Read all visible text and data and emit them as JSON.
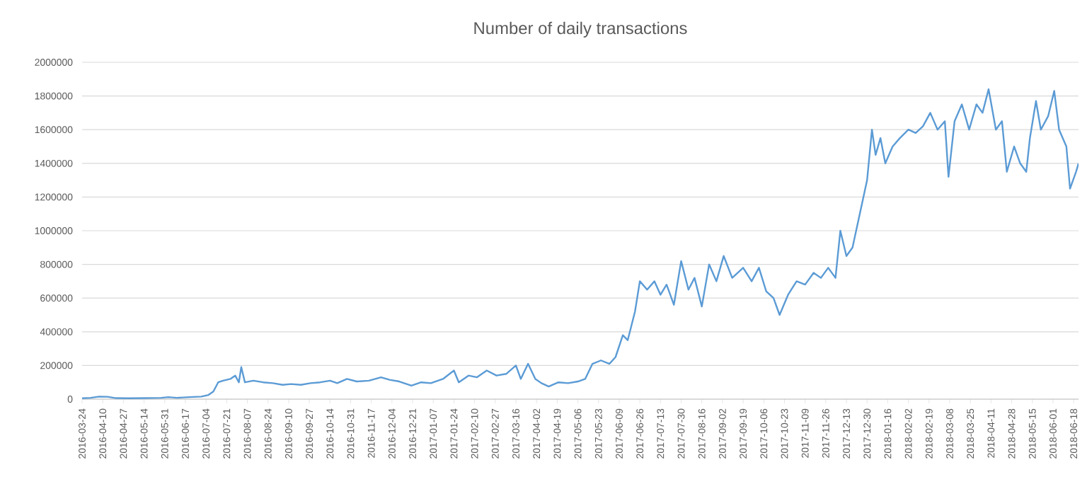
{
  "chart_data": {
    "type": "line",
    "title": "Number of daily transactions",
    "x": [
      "2016-03-24",
      "2016-03-31",
      "2016-04-07",
      "2016-04-14",
      "2016-04-21",
      "2016-05-01",
      "2016-05-15",
      "2016-05-28",
      "2016-06-03",
      "2016-06-10",
      "2016-06-20",
      "2016-06-30",
      "2016-07-06",
      "2016-07-10",
      "2016-07-14",
      "2016-07-18",
      "2016-07-24",
      "2016-07-28",
      "2016-07-31",
      "2016-08-02",
      "2016-08-05",
      "2016-08-12",
      "2016-08-20",
      "2016-08-28",
      "2016-09-05",
      "2016-09-12",
      "2016-09-20",
      "2016-09-28",
      "2016-10-06",
      "2016-10-14",
      "2016-10-20",
      "2016-10-28",
      "2016-11-05",
      "2016-11-15",
      "2016-11-25",
      "2016-12-02",
      "2016-12-10",
      "2016-12-20",
      "2016-12-28",
      "2017-01-05",
      "2017-01-15",
      "2017-01-24",
      "2017-01-28",
      "2017-02-05",
      "2017-02-12",
      "2017-02-20",
      "2017-02-28",
      "2017-03-08",
      "2017-03-16",
      "2017-03-20",
      "2017-03-26",
      "2017-04-01",
      "2017-04-06",
      "2017-04-12",
      "2017-04-20",
      "2017-04-28",
      "2017-05-06",
      "2017-05-12",
      "2017-05-18",
      "2017-05-25",
      "2017-06-01",
      "2017-06-06",
      "2017-06-12",
      "2017-06-16",
      "2017-06-22",
      "2017-06-26",
      "2017-07-02",
      "2017-07-08",
      "2017-07-13",
      "2017-07-18",
      "2017-07-24",
      "2017-07-30",
      "2017-08-05",
      "2017-08-10",
      "2017-08-16",
      "2017-08-22",
      "2017-08-28",
      "2017-09-03",
      "2017-09-10",
      "2017-09-19",
      "2017-09-26",
      "2017-10-02",
      "2017-10-08",
      "2017-10-14",
      "2017-10-19",
      "2017-10-26",
      "2017-11-02",
      "2017-11-09",
      "2017-11-16",
      "2017-11-22",
      "2017-11-28",
      "2017-12-04",
      "2017-12-08",
      "2017-12-13",
      "2017-12-18",
      "2017-12-24",
      "2017-12-30",
      "2018-01-03",
      "2018-01-06",
      "2018-01-10",
      "2018-01-14",
      "2018-01-20",
      "2018-01-26",
      "2018-02-02",
      "2018-02-08",
      "2018-02-14",
      "2018-02-20",
      "2018-02-26",
      "2018-03-04",
      "2018-03-07",
      "2018-03-12",
      "2018-03-18",
      "2018-03-24",
      "2018-03-30",
      "2018-04-04",
      "2018-04-09",
      "2018-04-15",
      "2018-04-20",
      "2018-04-24",
      "2018-04-30",
      "2018-05-05",
      "2018-05-10",
      "2018-05-13",
      "2018-05-18",
      "2018-05-22",
      "2018-05-28",
      "2018-06-02",
      "2018-06-06",
      "2018-06-12",
      "2018-06-15",
      "2018-06-20",
      "2018-06-22"
    ],
    "series": [
      {
        "color": "#5b9bd5",
        "values": [
          5000,
          8000,
          15000,
          14000,
          6000,
          5000,
          6000,
          8000,
          12000,
          8000,
          12000,
          15000,
          25000,
          45000,
          100000,
          110000,
          120000,
          140000,
          100000,
          190000,
          100000,
          110000,
          100000,
          95000,
          85000,
          90000,
          85000,
          95000,
          100000,
          110000,
          95000,
          120000,
          105000,
          110000,
          130000,
          115000,
          105000,
          80000,
          100000,
          95000,
          120000,
          170000,
          100000,
          140000,
          130000,
          170000,
          140000,
          150000,
          200000,
          120000,
          210000,
          120000,
          95000,
          75000,
          100000,
          95000,
          105000,
          120000,
          210000,
          230000,
          210000,
          250000,
          380000,
          350000,
          520000,
          700000,
          650000,
          700000,
          620000,
          680000,
          560000,
          820000,
          650000,
          720000,
          550000,
          800000,
          700000,
          850000,
          720000,
          780000,
          700000,
          780000,
          640000,
          600000,
          500000,
          620000,
          700000,
          680000,
          750000,
          720000,
          780000,
          720000,
          1000000,
          850000,
          900000,
          1100000,
          1300000,
          1600000,
          1450000,
          1550000,
          1400000,
          1500000,
          1550000,
          1600000,
          1580000,
          1620000,
          1700000,
          1600000,
          1650000,
          1320000,
          1650000,
          1750000,
          1600000,
          1750000,
          1700000,
          1840000,
          1600000,
          1650000,
          1350000,
          1500000,
          1400000,
          1350000,
          1550000,
          1770000,
          1600000,
          1680000,
          1830000,
          1600000,
          1500000,
          1250000,
          1350000,
          1400000
        ]
      }
    ],
    "xlim": [
      "2016-03-24",
      "2018-06-22"
    ],
    "xticks": [
      "2016-03-24",
      "2016-04-10",
      "2016-04-27",
      "2016-05-14",
      "2016-05-31",
      "2016-06-17",
      "2016-07-04",
      "2016-07-21",
      "2016-08-07",
      "2016-08-24",
      "2016-09-10",
      "2016-09-27",
      "2016-10-14",
      "2016-10-31",
      "2016-11-17",
      "2016-12-04",
      "2016-12-21",
      "2017-01-07",
      "2017-01-24",
      "2017-02-10",
      "2017-02-27",
      "2017-03-16",
      "2017-04-02",
      "2017-04-19",
      "2017-05-06",
      "2017-05-23",
      "2017-06-09",
      "2017-06-26",
      "2017-07-13",
      "2017-07-30",
      "2017-08-16",
      "2017-09-02",
      "2017-09-19",
      "2017-10-06",
      "2017-10-23",
      "2017-11-09",
      "2017-11-26",
      "2017-12-13",
      "2017-12-30",
      "2018-01-16",
      "2018-02-02",
      "2018-02-19",
      "2018-03-08",
      "2018-03-25",
      "2018-04-11",
      "2018-04-28",
      "2018-05-15",
      "2018-06-01",
      "2018-06-18"
    ],
    "ylim": [
      0,
      2000000
    ],
    "yticks": [
      0,
      200000,
      400000,
      600000,
      800000,
      1000000,
      1200000,
      1400000,
      1600000,
      1800000,
      2000000
    ],
    "grid": "y",
    "marker": "none",
    "line_style": "solid"
  }
}
